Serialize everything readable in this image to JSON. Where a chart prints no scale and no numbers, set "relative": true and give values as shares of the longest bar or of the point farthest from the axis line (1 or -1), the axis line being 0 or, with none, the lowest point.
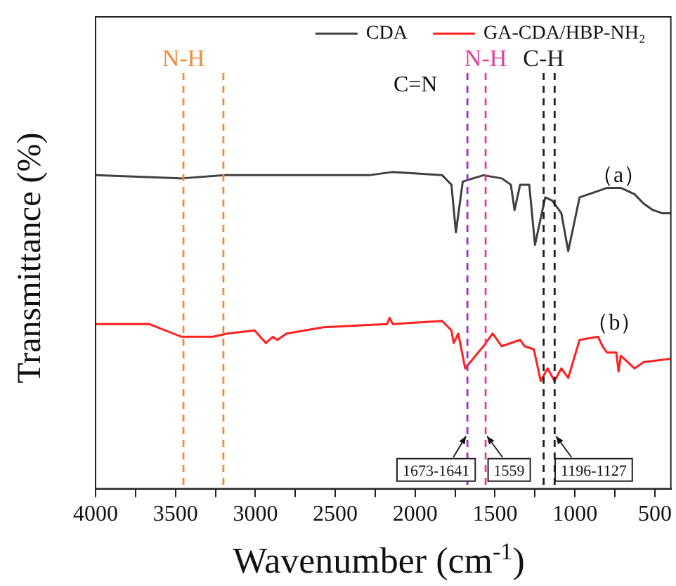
{
  "chart_data": {
    "type": "line",
    "relative": true,
    "xlabel": "Wavenumber (cm$^{-1}$)",
    "ylabel": "Transmittance (%)",
    "legend": "top right",
    "xlim": [
      4000,
      400
    ],
    "xticks": [
      4000,
      {
        "value": 3750,
        "label": null
      },
      3500,
      {
        "value": 3250,
        "label": null
      },
      3000,
      {
        "value": 2750,
        "label": null
      },
      2500,
      {
        "value": 2250,
        "label": null
      },
      2000,
      {
        "value": 1750,
        "label": null
      },
      1500,
      {
        "value": 1250,
        "label": null
      },
      1000,
      {
        "value": 750,
        "label": null
      },
      500
    ],
    "series": [
      {
        "name": "CDA",
        "color": "#404040",
        "x": [
          4000,
          3464,
          3192,
          2862,
          2289,
          2145,
          1831,
          1773,
          1745,
          1702,
          1573,
          1458,
          1401,
          1378,
          1343,
          1286,
          1250,
          1186,
          1143,
          1085,
          1042,
          971,
          913,
          799,
          713,
          627,
          569,
          512,
          455,
          403
        ],
        "values": [
          0.99,
          0.98,
          0.99,
          0.99,
          0.99,
          1.0,
          0.99,
          0.96,
          0.81,
          0.97,
          0.99,
          0.98,
          0.96,
          0.88,
          0.96,
          0.96,
          0.77,
          0.92,
          0.91,
          0.87,
          0.75,
          0.92,
          0.93,
          0.95,
          0.95,
          0.93,
          0.9,
          0.88,
          0.87,
          0.87
        ]
      },
      {
        "name": "GA-CDA/HBP-NH₂",
        "color": "#ff2020",
        "x": [
          4000,
          3665,
          3464,
          3263,
          3177,
          3005,
          2934,
          2891,
          2862,
          2805,
          2575,
          2175,
          2160,
          2140,
          1831,
          1773,
          1759,
          1730,
          1687,
          1573,
          1515,
          1458,
          1343,
          1315,
          1257,
          1214,
          1171,
          1128,
          1085,
          1042,
          971,
          856,
          827,
          799,
          741,
          727,
          713,
          627,
          569,
          403
        ],
        "values": [
          0.52,
          0.52,
          0.48,
          0.48,
          0.49,
          0.5,
          0.46,
          0.48,
          0.47,
          0.49,
          0.51,
          0.52,
          0.54,
          0.52,
          0.53,
          0.5,
          0.46,
          0.49,
          0.38,
          0.45,
          0.49,
          0.45,
          0.47,
          0.45,
          0.44,
          0.34,
          0.38,
          0.34,
          0.38,
          0.35,
          0.47,
          0.48,
          0.45,
          0.43,
          0.43,
          0.37,
          0.42,
          0.38,
          0.4,
          0.41
        ]
      }
    ],
    "ref_lines": [
      {
        "axis": "x",
        "value": 3450,
        "label": "N-H",
        "color": "#f08a3c",
        "line_style": "dashed"
      },
      {
        "axis": "x",
        "value": 3200,
        "color": "#f08a3c",
        "line_style": "dashed"
      },
      {
        "axis": "x",
        "value": 1673,
        "color": "#9b30c8",
        "line_style": "dashed"
      },
      {
        "axis": "x",
        "value": 1559,
        "label": "N-H",
        "color": "#e0409a",
        "line_style": "dashed"
      },
      {
        "axis": "x",
        "value": 1196,
        "label": "C-H",
        "color": "#202020",
        "line_style": "dashed"
      },
      {
        "axis": "x",
        "value": 1127,
        "color": "#202020",
        "line_style": "dashed"
      }
    ],
    "annotations": [
      "C=N",
      "（a）",
      "（b）",
      "1673-1641",
      "1559",
      "1196-1127"
    ]
  }
}
